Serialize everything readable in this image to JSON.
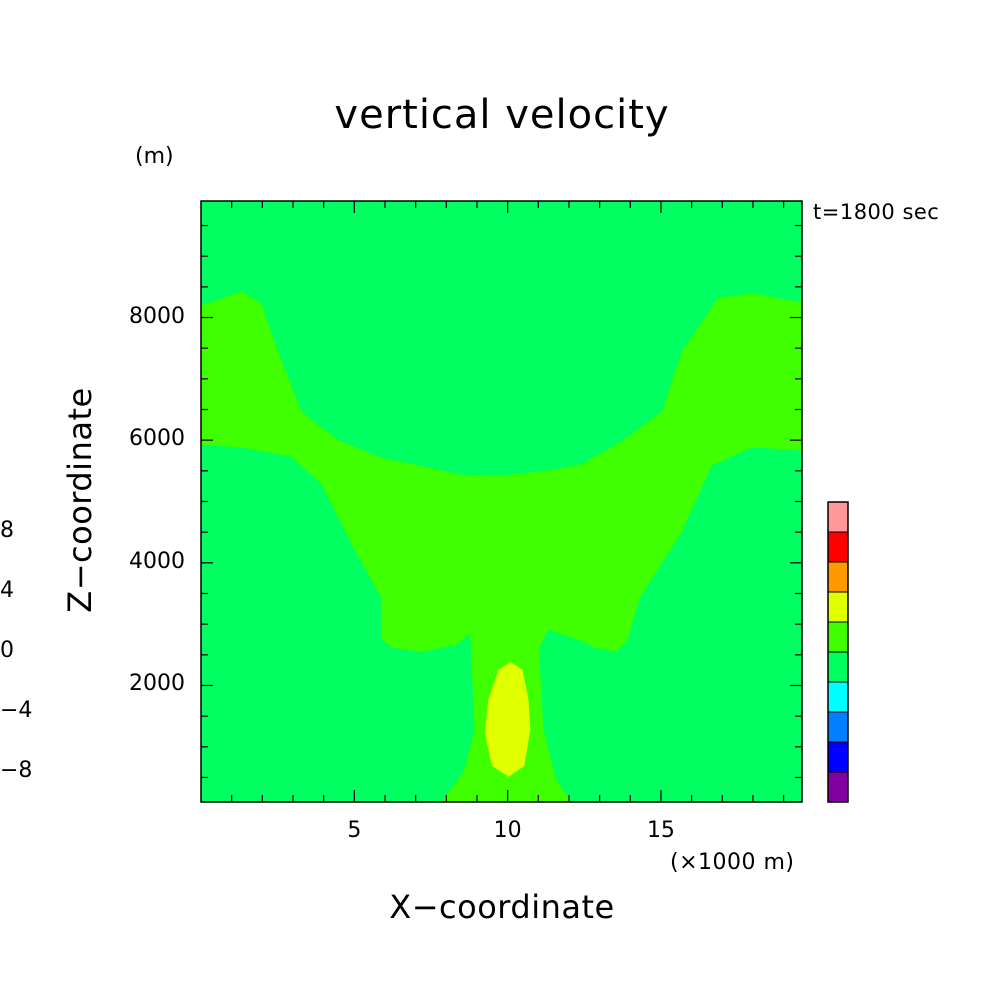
{
  "chart_data": {
    "type": "contour",
    "title": "vertical velocity",
    "xlabel": "X−coordinate",
    "ylabel": "Z−coordinate",
    "x_unit": "(×1000 m)",
    "y_unit": "(m)",
    "time_label": "t=1800 sec",
    "xlim": [
      0,
      19.6
    ],
    "ylim": [
      100,
      9900
    ],
    "x_ticks": [
      "5",
      "10",
      "15"
    ],
    "x_tick_values": [
      5,
      10,
      15
    ],
    "y_ticks": [
      "2000",
      "4000",
      "6000",
      "8000"
    ],
    "y_tick_values": [
      2000,
      4000,
      6000,
      8000
    ],
    "colorbar": {
      "levels": [
        -10,
        -8,
        -6,
        -4,
        -2,
        0,
        2,
        4,
        6,
        8,
        10
      ],
      "colors": [
        "#8000a0",
        "#0000ff",
        "#0080ff",
        "#00ffff",
        "#00ff60",
        "#40ff00",
        "#e0ff00",
        "#ff9900",
        "#ff0000",
        "#ff9999"
      ],
      "tick_labels": [
        "−8",
        "−4",
        "0",
        "4",
        "8"
      ],
      "tick_values": [
        -8,
        -4,
        0,
        4,
        8
      ]
    },
    "regions": [
      {
        "name": "background",
        "value_range": [
          -2,
          0
        ],
        "color": "#00ff60"
      },
      {
        "name": "updraft-band",
        "value_range": [
          0,
          2
        ],
        "color": "#40ff00"
      },
      {
        "name": "upper-core",
        "value_range": [
          -2,
          0
        ],
        "color": "#00ff60"
      },
      {
        "name": "low-level-core",
        "value_range": [
          2,
          4
        ],
        "color": "#e0ff00"
      }
    ],
    "grid": false
  }
}
